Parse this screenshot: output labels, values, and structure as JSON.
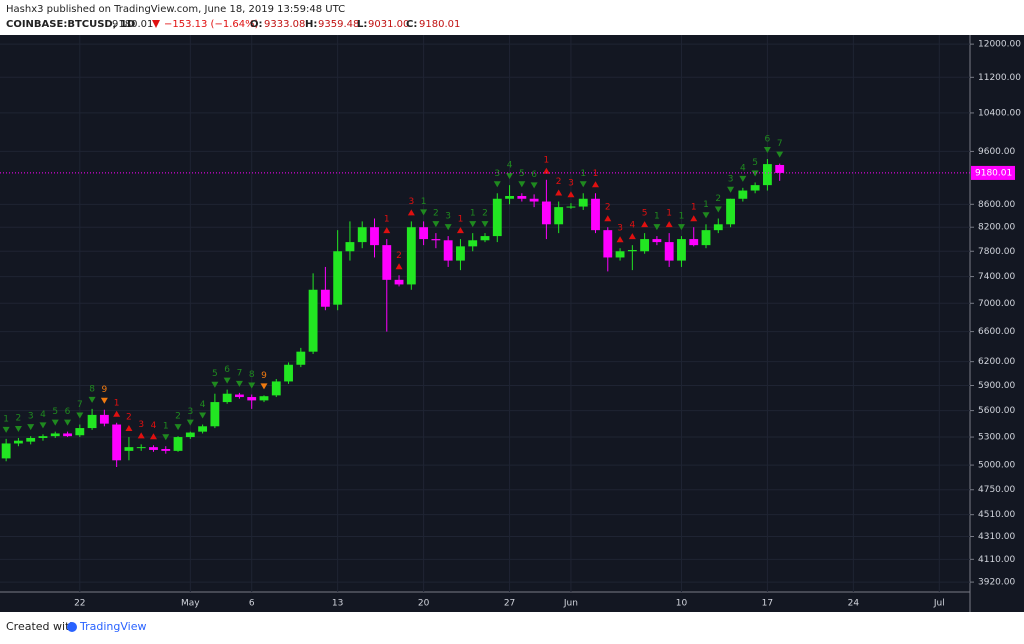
{
  "header": {
    "publisher": "Hashx3 published on TradingView.com, June 18, 2019 13:59:48 UTC",
    "symbol": "COINBASE:BTCUSD, 1D",
    "last": "9180.01",
    "change": "−153.13 (−1.64%)",
    "o_label": "O:",
    "o": "9333.08",
    "h_label": "H:",
    "h": "9359.48",
    "l_label": "L:",
    "l": "9031.00",
    "c_label": "C:",
    "c": "9180.01"
  },
  "footer": {
    "created": "Created with",
    "brand": "TradingView"
  },
  "chart_data": {
    "type": "candlestick",
    "log_scale": true,
    "grid": true,
    "up_color": "#22e622",
    "down_color": "#ff00ff",
    "sell_color": "#1f8a1f",
    "buy_color": "#e01010",
    "nine_color": "#f07a10",
    "ylim": [
      3840,
      12230
    ],
    "yticks": [
      {
        "value": 12000,
        "label": "12000.00"
      },
      {
        "value": 11200,
        "label": "11200.00"
      },
      {
        "value": 10400,
        "label": "10400.00"
      },
      {
        "value": 9600,
        "label": "9600.00"
      },
      {
        "value": 8600,
        "label": "8600.00"
      },
      {
        "value": 8200,
        "label": "8200.00"
      },
      {
        "value": 7800,
        "label": "7800.00"
      },
      {
        "value": 7400,
        "label": "7400.00"
      },
      {
        "value": 7000,
        "label": "7000.00"
      },
      {
        "value": 6600,
        "label": "6600.00"
      },
      {
        "value": 6200,
        "label": "6200.00"
      },
      {
        "value": 5900,
        "label": "5900.00"
      },
      {
        "value": 5600,
        "label": "5600.00"
      },
      {
        "value": 5300,
        "label": "5300.00"
      },
      {
        "value": 5000,
        "label": "5000.00"
      },
      {
        "value": 4750,
        "label": "4750.00"
      },
      {
        "value": 4510,
        "label": "4510.00"
      },
      {
        "value": 4310,
        "label": "4310.00"
      },
      {
        "value": 4110,
        "label": "4110.00"
      },
      {
        "value": 3920,
        "label": "3920.00"
      }
    ],
    "categories": [
      null,
      null,
      null,
      null,
      null,
      null,
      "22",
      null,
      null,
      null,
      null,
      null,
      null,
      null,
      null,
      "May",
      null,
      null,
      null,
      null,
      "6",
      null,
      null,
      null,
      null,
      null,
      null,
      "13",
      null,
      null,
      null,
      null,
      null,
      null,
      "20",
      null,
      null,
      null,
      null,
      null,
      null,
      "27",
      null,
      null,
      null,
      null,
      "Jun",
      null,
      null,
      null,
      null,
      null,
      null,
      null,
      null,
      "10",
      null,
      null,
      null,
      null,
      null,
      null,
      "17",
      null,
      null,
      null,
      null,
      null,
      null,
      "24",
      null,
      null,
      null,
      null,
      null,
      null,
      "Jul",
      null,
      null
    ],
    "open": [
      5070,
      5230,
      5250,
      5290,
      5310,
      5340,
      5320,
      5400,
      5550,
      5440,
      5150,
      5180,
      5190,
      5170,
      5150,
      5300,
      5360,
      5420,
      5700,
      5790,
      5760,
      5720,
      5780,
      5950,
      6160,
      6330,
      7200,
      6980,
      7800,
      7950,
      8200,
      7900,
      7350,
      7280,
      8200,
      8000,
      7980,
      7650,
      7880,
      7980,
      8050,
      8700,
      8750,
      8700,
      8650,
      8250,
      8550,
      8560,
      8700,
      8150,
      7700,
      7800,
      7800,
      8000,
      7950,
      7650,
      8000,
      7900,
      8150,
      8250,
      8700,
      8850,
      8950,
      9333.08,
      null,
      null,
      null,
      null,
      null,
      null,
      null,
      null,
      null,
      null,
      null,
      null,
      null,
      null,
      null
    ],
    "high": [
      5280,
      5290,
      5310,
      5330,
      5360,
      5360,
      5440,
      5620,
      5610,
      5460,
      5300,
      5220,
      5210,
      5200,
      5310,
      5360,
      5440,
      5800,
      5850,
      5810,
      5790,
      5780,
      5980,
      6190,
      6380,
      7450,
      7550,
      8150,
      8300,
      8300,
      8350,
      8000,
      7420,
      8300,
      8300,
      8100,
      8050,
      8000,
      8100,
      8100,
      8800,
      8950,
      8800,
      8780,
      9050,
      8650,
      8620,
      8800,
      8800,
      8200,
      7850,
      7900,
      8100,
      8050,
      8100,
      8050,
      8200,
      8250,
      8350,
      8700,
      8900,
      9000,
      9450,
      9359.48,
      null,
      null,
      null,
      null,
      null,
      null,
      null,
      null,
      null,
      null,
      null,
      null,
      null,
      null,
      null
    ],
    "low": [
      5040,
      5200,
      5220,
      5260,
      5290,
      5300,
      5300,
      5380,
      5420,
      4980,
      5050,
      5150,
      5140,
      5120,
      5140,
      5280,
      5340,
      5400,
      5680,
      5740,
      5620,
      5700,
      5760,
      5920,
      6130,
      6300,
      6900,
      6900,
      7650,
      7850,
      7700,
      6600,
      7250,
      7200,
      7900,
      7850,
      7550,
      7500,
      7800,
      7950,
      7950,
      8600,
      8650,
      8550,
      8000,
      8100,
      8520,
      8500,
      8100,
      7480,
      7650,
      7500,
      7760,
      7900,
      7550,
      7550,
      7880,
      7850,
      8100,
      8200,
      8650,
      8800,
      8850,
      9031,
      null,
      null,
      null,
      null,
      null,
      null,
      null,
      null,
      null,
      null,
      null,
      null,
      null,
      null,
      null
    ],
    "close": [
      5230,
      5260,
      5290,
      5310,
      5340,
      5310,
      5400,
      5550,
      5450,
      5050,
      5190,
      5190,
      5160,
      5150,
      5300,
      5350,
      5420,
      5700,
      5800,
      5760,
      5720,
      5770,
      5950,
      6160,
      6330,
      7200,
      6950,
      7800,
      7950,
      8200,
      7900,
      7350,
      7280,
      8200,
      8000,
      7980,
      7650,
      7880,
      7980,
      8050,
      8700,
      8750,
      8700,
      8650,
      8250,
      8550,
      8560,
      8700,
      8150,
      7700,
      7800,
      7820,
      8000,
      7950,
      7650,
      8000,
      7900,
      8150,
      8250,
      8700,
      8850,
      8950,
      9350,
      9180.01,
      null,
      null,
      null,
      null,
      null,
      null,
      null,
      null,
      null,
      null,
      null,
      null,
      null,
      null,
      null
    ],
    "td_counts": [
      1,
      2,
      3,
      4,
      5,
      6,
      7,
      8,
      9,
      1,
      2,
      3,
      4,
      1,
      2,
      3,
      4,
      5,
      6,
      7,
      8,
      9,
      null,
      null,
      null,
      null,
      null,
      null,
      null,
      null,
      null,
      1,
      2,
      3,
      1,
      2,
      3,
      1,
      1,
      2,
      3,
      4,
      5,
      6,
      1,
      2,
      3,
      1,
      1,
      2,
      3,
      4,
      5,
      1,
      1,
      1,
      1,
      1,
      2,
      3,
      4,
      5,
      6,
      7,
      null,
      null,
      null,
      null,
      null,
      null,
      null,
      null,
      null,
      null,
      null,
      null,
      null,
      null,
      null
    ],
    "td_sides": [
      "sell",
      "sell",
      "sell",
      "sell",
      "sell",
      "sell",
      "sell",
      "sell",
      "sell",
      "buy",
      "buy",
      "buy",
      "buy",
      "sell",
      "sell",
      "sell",
      "sell",
      "sell",
      "sell",
      "sell",
      "sell",
      "sell",
      null,
      null,
      null,
      null,
      null,
      null,
      null,
      null,
      null,
      "buy",
      "buy",
      "buy",
      "sell",
      "sell",
      "sell",
      "buy",
      "sell",
      "sell",
      "sell",
      "sell",
      "sell",
      "sell",
      "buy",
      "buy",
      "buy",
      "sell",
      "buy",
      "buy",
      "buy",
      "buy",
      "buy",
      "sell",
      "buy",
      "sell",
      "buy",
      "sell",
      "sell",
      "sell",
      "sell",
      "sell",
      "sell",
      "sell",
      null,
      null,
      null,
      null,
      null,
      null,
      null,
      null,
      null,
      null,
      null,
      null,
      null,
      null,
      null
    ]
  }
}
